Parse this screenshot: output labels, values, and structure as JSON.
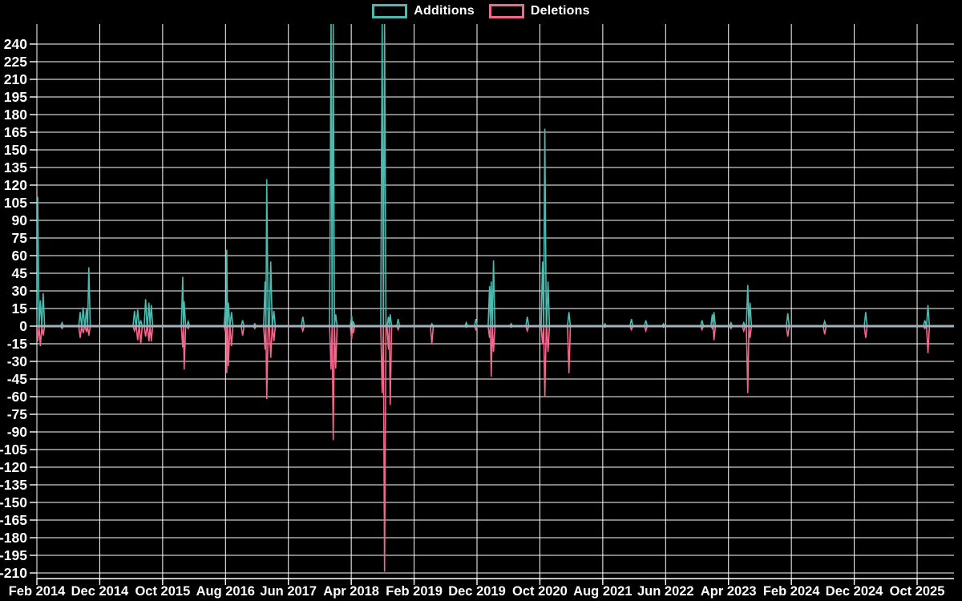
{
  "legend": {
    "items": [
      {
        "id": "additions",
        "label": "Additions",
        "color": "#4DB9AF"
      },
      {
        "id": "deletions",
        "label": "Deletions",
        "color": "#F4678D"
      }
    ]
  },
  "chart_data": {
    "type": "line",
    "title": "",
    "series_names": [
      "Additions",
      "Deletions"
    ],
    "legend_position": "top-center",
    "grid": true,
    "background_color": "#000000",
    "grid_color": "#FFFFFF",
    "text_color": "#FFFFFF",
    "baseline_color": "#9FB3BF",
    "additions_color": "#4DB9AF",
    "deletions_color": "#F4678D",
    "y_axis": {
      "step": 15,
      "labeled_min": -210,
      "labeled_max": 240,
      "tick_labels": [
        "240",
        "225",
        "210",
        "195",
        "180",
        "165",
        "150",
        "135",
        "120",
        "105",
        "90",
        "75",
        "60",
        "45",
        "30",
        "15",
        "0",
        "-15",
        "-30",
        "-45",
        "-60",
        "-75",
        "-90",
        "-105",
        "-120",
        "-135",
        "-150",
        "-165",
        "-180",
        "-195",
        "-210"
      ]
    },
    "x_axis": {
      "tick_interval_months": 10,
      "first_tick_month": "2014-02",
      "last_tick_month": "2025-10",
      "plot_end_month": "2026-03",
      "tick_labels": [
        "Feb 2014",
        "Dec 2014",
        "Oct 2015",
        "Aug 2016",
        "Jun 2017",
        "Apr 2018",
        "Feb 2019",
        "Dec 2019",
        "Oct 2020",
        "Aug 2021",
        "Jun 2022",
        "Apr 2023",
        "Feb 2024",
        "Dec 2024",
        "Oct 2025"
      ]
    },
    "weekly_spikes": [
      {
        "date": "2014-02-05",
        "additions": 110,
        "deletions": -13
      },
      {
        "date": "2014-02-18",
        "additions": 22,
        "deletions": -17
      },
      {
        "date": "2014-03-01",
        "additions": 28,
        "deletions": -8
      },
      {
        "date": "2014-06-01",
        "additions": 3,
        "deletions": -2
      },
      {
        "date": "2014-08-28",
        "additions": 12,
        "deletions": -10
      },
      {
        "date": "2014-09-12",
        "additions": 16,
        "deletions": -6
      },
      {
        "date": "2014-09-28",
        "additions": 15,
        "deletions": -5
      },
      {
        "date": "2014-10-09",
        "additions": 50,
        "deletions": -8
      },
      {
        "date": "2015-05-17",
        "additions": 13,
        "deletions": -4
      },
      {
        "date": "2015-06-02",
        "additions": 14,
        "deletions": -12
      },
      {
        "date": "2015-06-17",
        "additions": 5,
        "deletions": -15
      },
      {
        "date": "2015-07-10",
        "additions": 23,
        "deletions": -9
      },
      {
        "date": "2015-07-26",
        "additions": 20,
        "deletions": -13
      },
      {
        "date": "2015-08-07",
        "additions": 18,
        "deletions": -13
      },
      {
        "date": "2016-01-07",
        "additions": 42,
        "deletions": -18
      },
      {
        "date": "2016-01-14",
        "additions": 21,
        "deletions": -37
      },
      {
        "date": "2016-02-03",
        "additions": 4,
        "deletions": -2
      },
      {
        "date": "2016-08-01",
        "additions": 18,
        "deletions": -5
      },
      {
        "date": "2016-08-07",
        "additions": 65,
        "deletions": -40
      },
      {
        "date": "2016-08-15",
        "additions": 20,
        "deletions": -34
      },
      {
        "date": "2016-08-30",
        "additions": 12,
        "deletions": -17
      },
      {
        "date": "2016-10-23",
        "additions": 5,
        "deletions": -8
      },
      {
        "date": "2016-12-21",
        "additions": 2,
        "deletions": -2
      },
      {
        "date": "2017-02-10",
        "additions": 38,
        "deletions": -20
      },
      {
        "date": "2017-02-18",
        "additions": 125,
        "deletions": -62
      },
      {
        "date": "2017-03-07",
        "additions": 55,
        "deletions": -27
      },
      {
        "date": "2017-03-22",
        "additions": 13,
        "deletions": -13
      },
      {
        "date": "2017-08-10",
        "additions": 8,
        "deletions": -4
      },
      {
        "date": "2017-12-25",
        "additions": 260,
        "deletions": -37,
        "additions_clipped_above_axis": true
      },
      {
        "date": "2018-01-05",
        "additions": 260,
        "deletions": -97,
        "additions_clipped_above_axis": true
      },
      {
        "date": "2018-01-17",
        "additions": 10,
        "deletions": -36
      },
      {
        "date": "2018-04-03",
        "additions": 9,
        "deletions": -11
      },
      {
        "date": "2018-04-11",
        "additions": 4,
        "deletions": -6
      },
      {
        "date": "2018-08-29",
        "additions": 260,
        "deletions": -57,
        "additions_clipped_above_axis": true
      },
      {
        "date": "2018-09-10",
        "additions": 260,
        "deletions": -209,
        "additions_clipped_above_axis": true
      },
      {
        "date": "2018-09-29",
        "additions": 8,
        "deletions": -20
      },
      {
        "date": "2018-10-07",
        "additions": 10,
        "deletions": -67
      },
      {
        "date": "2018-11-15",
        "additions": 6,
        "deletions": -3
      },
      {
        "date": "2019-04-26",
        "additions": 2,
        "deletions": -15
      },
      {
        "date": "2019-10-10",
        "additions": 3,
        "deletions": -1
      },
      {
        "date": "2019-11-26",
        "additions": 6,
        "deletions": -3
      },
      {
        "date": "2020-02-01",
        "additions": 34,
        "deletions": -10
      },
      {
        "date": "2020-02-09",
        "additions": 38,
        "deletions": -43
      },
      {
        "date": "2020-02-20",
        "additions": 56,
        "deletions": -22
      },
      {
        "date": "2020-05-14",
        "additions": 2,
        "deletions": -1
      },
      {
        "date": "2020-08-01",
        "additions": 8,
        "deletions": -4
      },
      {
        "date": "2020-10-14",
        "additions": 55,
        "deletions": -15
      },
      {
        "date": "2020-10-25",
        "additions": 168,
        "deletions": -60
      },
      {
        "date": "2020-11-10",
        "additions": 38,
        "deletions": -22
      },
      {
        "date": "2021-02-20",
        "additions": 12,
        "deletions": -40
      },
      {
        "date": "2021-08-12",
        "additions": 2,
        "deletions": -1
      },
      {
        "date": "2021-12-18",
        "additions": 6,
        "deletions": -3
      },
      {
        "date": "2022-02-27",
        "additions": 5,
        "deletions": -4
      },
      {
        "date": "2022-05-21",
        "additions": 2,
        "deletions": -1
      },
      {
        "date": "2022-11-25",
        "additions": 5,
        "deletions": -3
      },
      {
        "date": "2023-01-14",
        "additions": 10,
        "deletions": -2
      },
      {
        "date": "2023-01-22",
        "additions": 12,
        "deletions": -12
      },
      {
        "date": "2023-04-13",
        "additions": 3,
        "deletions": -2
      },
      {
        "date": "2023-06-14",
        "additions": 3,
        "deletions": -4
      },
      {
        "date": "2023-07-03",
        "additions": 35,
        "deletions": -57
      },
      {
        "date": "2023-07-14",
        "additions": 20,
        "deletions": -10
      },
      {
        "date": "2024-01-14",
        "additions": 11,
        "deletions": -9
      },
      {
        "date": "2024-07-10",
        "additions": 4,
        "deletions": -7
      },
      {
        "date": "2025-01-26",
        "additions": 12,
        "deletions": -10
      },
      {
        "date": "2025-11-08",
        "additions": 5,
        "deletions": -2
      },
      {
        "date": "2025-11-23",
        "additions": 18,
        "deletions": -23
      }
    ]
  }
}
